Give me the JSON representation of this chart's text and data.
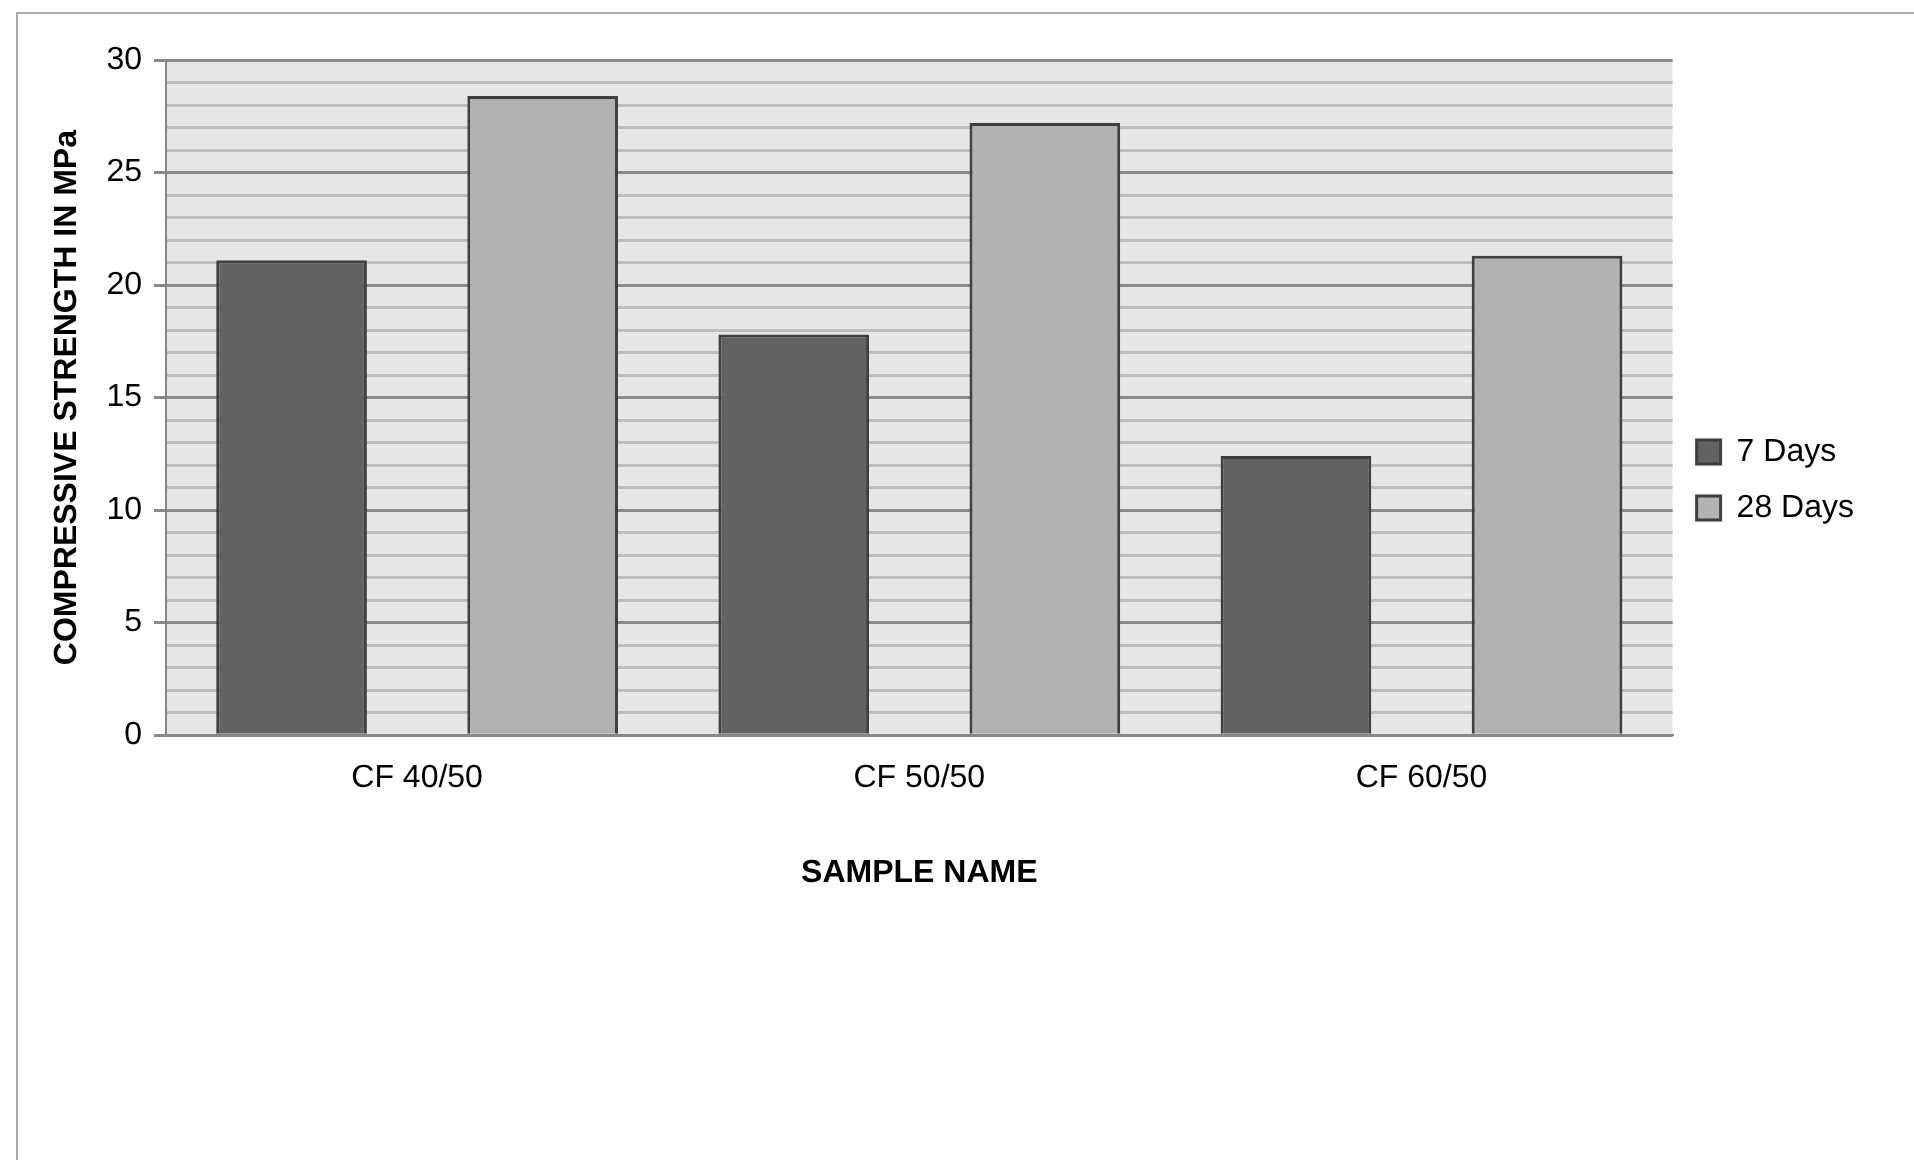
{
  "chart_data": {
    "type": "bar",
    "xlabel": "SAMPLE NAME",
    "ylabel": "COMPRESSIVE STRENGTH IN MPa",
    "categories": [
      "CF 40/50",
      "CF 50/50",
      "CF 60/50"
    ],
    "series": [
      {
        "name": "7 Days",
        "color": "#626262",
        "values": [
          21.1,
          17.8,
          12.4
        ]
      },
      {
        "name": "28 Days",
        "color": "#b2b2b2",
        "values": [
          28.4,
          27.2,
          21.3
        ]
      }
    ],
    "ylim": [
      0,
      30
    ],
    "yticks": [
      0,
      {
        "value": 1,
        "label": null
      },
      {
        "value": 2,
        "label": null
      },
      {
        "value": 3,
        "label": null
      },
      {
        "value": 4,
        "label": null
      },
      5,
      {
        "value": 6,
        "label": null
      },
      {
        "value": 7,
        "label": null
      },
      {
        "value": 8,
        "label": null
      },
      {
        "value": 9,
        "label": null
      },
      10,
      {
        "value": 11,
        "label": null
      },
      {
        "value": 12,
        "label": null
      },
      {
        "value": 13,
        "label": null
      },
      {
        "value": 14,
        "label": null
      },
      15,
      {
        "value": 16,
        "label": null
      },
      {
        "value": 17,
        "label": null
      },
      {
        "value": 18,
        "label": null
      },
      {
        "value": 19,
        "label": null
      },
      20,
      {
        "value": 21,
        "label": null
      },
      {
        "value": 22,
        "label": null
      },
      {
        "value": 23,
        "label": null
      },
      {
        "value": 24,
        "label": null
      },
      25,
      {
        "value": 26,
        "label": null
      },
      {
        "value": 27,
        "label": null
      },
      {
        "value": 28,
        "label": null
      },
      {
        "value": 29,
        "label": null
      },
      30
    ],
    "grid": "y",
    "legend": "right"
  }
}
